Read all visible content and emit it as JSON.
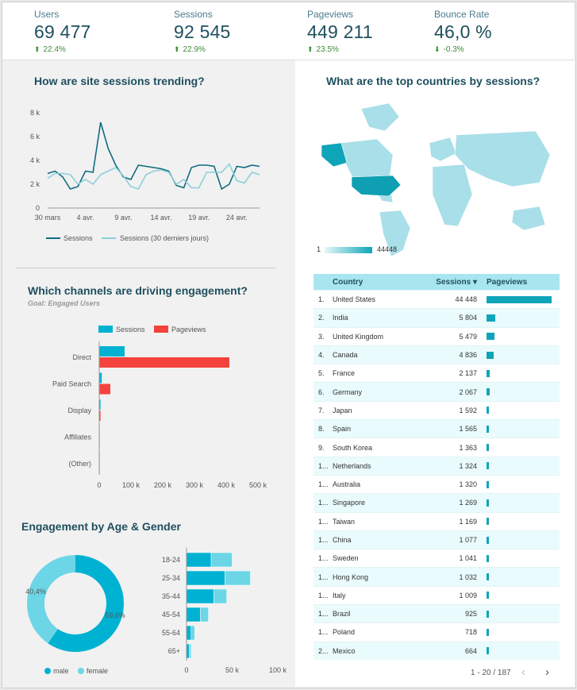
{
  "kpis": [
    {
      "label": "Users",
      "value": "69 477",
      "change": "22.4%",
      "dir": "up"
    },
    {
      "label": "Sessions",
      "value": "92 545",
      "change": "22.9%",
      "dir": "up"
    },
    {
      "label": "Pageviews",
      "value": "449 211",
      "change": "23.5%",
      "dir": "up"
    },
    {
      "label": "Bounce Rate",
      "value": "46,0 %",
      "change": "-0.3%",
      "dir": "down"
    }
  ],
  "trend": {
    "title": "How are site sessions trending?",
    "y_ticks": [
      "8 k",
      "6 k",
      "4 k",
      "2 k",
      "0"
    ],
    "x_ticks": [
      "30 mars",
      "4 avr.",
      "9 avr.",
      "14 avr.",
      "19 avr.",
      "24 avr."
    ],
    "legend": [
      "Sessions",
      "Sessions (30 derniers jours)"
    ]
  },
  "channels": {
    "title": "Which channels are driving engagement?",
    "subtitle": "Goal: Engaged Users",
    "legend": [
      "Sessions",
      "Pageviews"
    ],
    "x_ticks": [
      "0",
      "100 k",
      "200 k",
      "300 k",
      "400 k",
      "500 k"
    ]
  },
  "age_gender": {
    "title": "Engagement by Age & Gender",
    "legend": [
      "male",
      "female"
    ],
    "x_ticks": [
      "0",
      "50 k",
      "100 k"
    ]
  },
  "countries": {
    "title": "What are the top countries by sessions?",
    "scale_min": "1",
    "scale_max": "44448",
    "headers": {
      "country": "Country",
      "sessions": "Sessions ▾",
      "pageviews": "Pageviews"
    },
    "pager": "1 - 20 / 187",
    "rows": [
      {
        "rank": "1.",
        "country": "United States",
        "sessions": "44 448"
      },
      {
        "rank": "2.",
        "country": "India",
        "sessions": "5 804"
      },
      {
        "rank": "3.",
        "country": "United Kingdom",
        "sessions": "5 479"
      },
      {
        "rank": "4.",
        "country": "Canada",
        "sessions": "4 836"
      },
      {
        "rank": "5.",
        "country": "France",
        "sessions": "2 137"
      },
      {
        "rank": "6.",
        "country": "Germany",
        "sessions": "2 067"
      },
      {
        "rank": "7.",
        "country": "Japan",
        "sessions": "1 592"
      },
      {
        "rank": "8.",
        "country": "Spain",
        "sessions": "1 565"
      },
      {
        "rank": "9.",
        "country": "South Korea",
        "sessions": "1 363"
      },
      {
        "rank": "1...",
        "country": "Netherlands",
        "sessions": "1 324"
      },
      {
        "rank": "1...",
        "country": "Australia",
        "sessions": "1 320"
      },
      {
        "rank": "1...",
        "country": "Singapore",
        "sessions": "1 269"
      },
      {
        "rank": "1...",
        "country": "Taiwan",
        "sessions": "1 169"
      },
      {
        "rank": "1...",
        "country": "China",
        "sessions": "1 077"
      },
      {
        "rank": "1...",
        "country": "Sweden",
        "sessions": "1 041"
      },
      {
        "rank": "1...",
        "country": "Hong Kong",
        "sessions": "1 032"
      },
      {
        "rank": "1...",
        "country": "Italy",
        "sessions": "1 009"
      },
      {
        "rank": "1...",
        "country": "Brazil",
        "sessions": "925"
      },
      {
        "rank": "1...",
        "country": "Poland",
        "sessions": "718"
      },
      {
        "rank": "2...",
        "country": "Mexico",
        "sessions": "664"
      }
    ]
  },
  "colors": {
    "primary": "#0f6c80",
    "light": "#8ccfd8",
    "pageviews": "#f4433c",
    "cyan": "#00b2d2",
    "female": "#6cd6e6"
  },
  "chart_data": [
    {
      "type": "line",
      "title": "How are site sessions trending?",
      "ylim": [
        0,
        8000
      ],
      "x": [
        "30 mars",
        "31 mars",
        "1 avr.",
        "2 avr.",
        "3 avr.",
        "4 avr.",
        "5 avr.",
        "6 avr.",
        "7 avr.",
        "8 avr.",
        "9 avr.",
        "10 avr.",
        "11 avr.",
        "12 avr.",
        "13 avr.",
        "14 avr.",
        "15 avr.",
        "16 avr.",
        "17 avr.",
        "18 avr.",
        "19 avr.",
        "20 avr.",
        "21 avr.",
        "22 avr.",
        "23 avr.",
        "24 avr.",
        "25 avr.",
        "26 avr.",
        "27 avr."
      ],
      "series": [
        {
          "name": "Sessions",
          "values": [
            2900,
            3100,
            2600,
            1600,
            1800,
            3100,
            3000,
            7200,
            5000,
            3600,
            2600,
            2400,
            3600,
            3500,
            3400,
            3300,
            3100,
            1900,
            1700,
            3400,
            3600,
            3600,
            3500,
            1600,
            2000,
            3500,
            3400,
            3600,
            3500
          ]
        },
        {
          "name": "Sessions (30 derniers jours)",
          "values": [
            2500,
            2900,
            2900,
            2800,
            2000,
            2400,
            2000,
            2800,
            3100,
            3400,
            2700,
            1800,
            1600,
            2800,
            3100,
            3200,
            3000,
            2000,
            2400,
            1700,
            1700,
            3000,
            3000,
            3000,
            3700,
            2300,
            2100,
            3000,
            2800
          ]
        }
      ]
    },
    {
      "type": "bar",
      "title": "Which channels are driving engagement?",
      "categories": [
        "Direct",
        "Paid Search",
        "Display",
        "Affiliates",
        "(Other)"
      ],
      "series": [
        {
          "name": "Sessions",
          "values": [
            80000,
            8000,
            4000,
            0,
            0
          ]
        },
        {
          "name": "Pageviews",
          "values": [
            410000,
            35000,
            4000,
            0,
            0
          ]
        }
      ],
      "xlim": [
        0,
        500000
      ]
    },
    {
      "type": "pie",
      "title": "Engagement by Age & Gender",
      "categories": [
        "male",
        "female"
      ],
      "values": [
        59.6,
        40.4
      ],
      "labels": [
        "59,6%",
        "40,4%"
      ]
    },
    {
      "type": "bar",
      "categories": [
        "18-24",
        "25-34",
        "35-44",
        "45-54",
        "55-64",
        "65+"
      ],
      "series": [
        {
          "name": "male",
          "values": [
            27000,
            42000,
            30000,
            15000,
            5000,
            3000
          ]
        },
        {
          "name": "female",
          "values": [
            23000,
            28000,
            14000,
            9000,
            4000,
            2000
          ]
        }
      ],
      "xlim": [
        0,
        100000
      ]
    },
    {
      "type": "bar",
      "categories": [
        "United States",
        "India",
        "United Kingdom",
        "Canada",
        "France",
        "Germany",
        "Japan",
        "Spain",
        "South Korea",
        "Netherlands",
        "Australia",
        "Singapore",
        "Taiwan",
        "China",
        "Sweden",
        "Hong Kong",
        "Italy",
        "Brazil",
        "Poland",
        "Mexico"
      ],
      "series": [
        {
          "name": "Sessions",
          "values": [
            44448,
            5804,
            5479,
            4836,
            2137,
            2067,
            1592,
            1565,
            1363,
            1324,
            1320,
            1269,
            1169,
            1077,
            1041,
            1032,
            1009,
            925,
            718,
            664
          ]
        }
      ]
    }
  ]
}
